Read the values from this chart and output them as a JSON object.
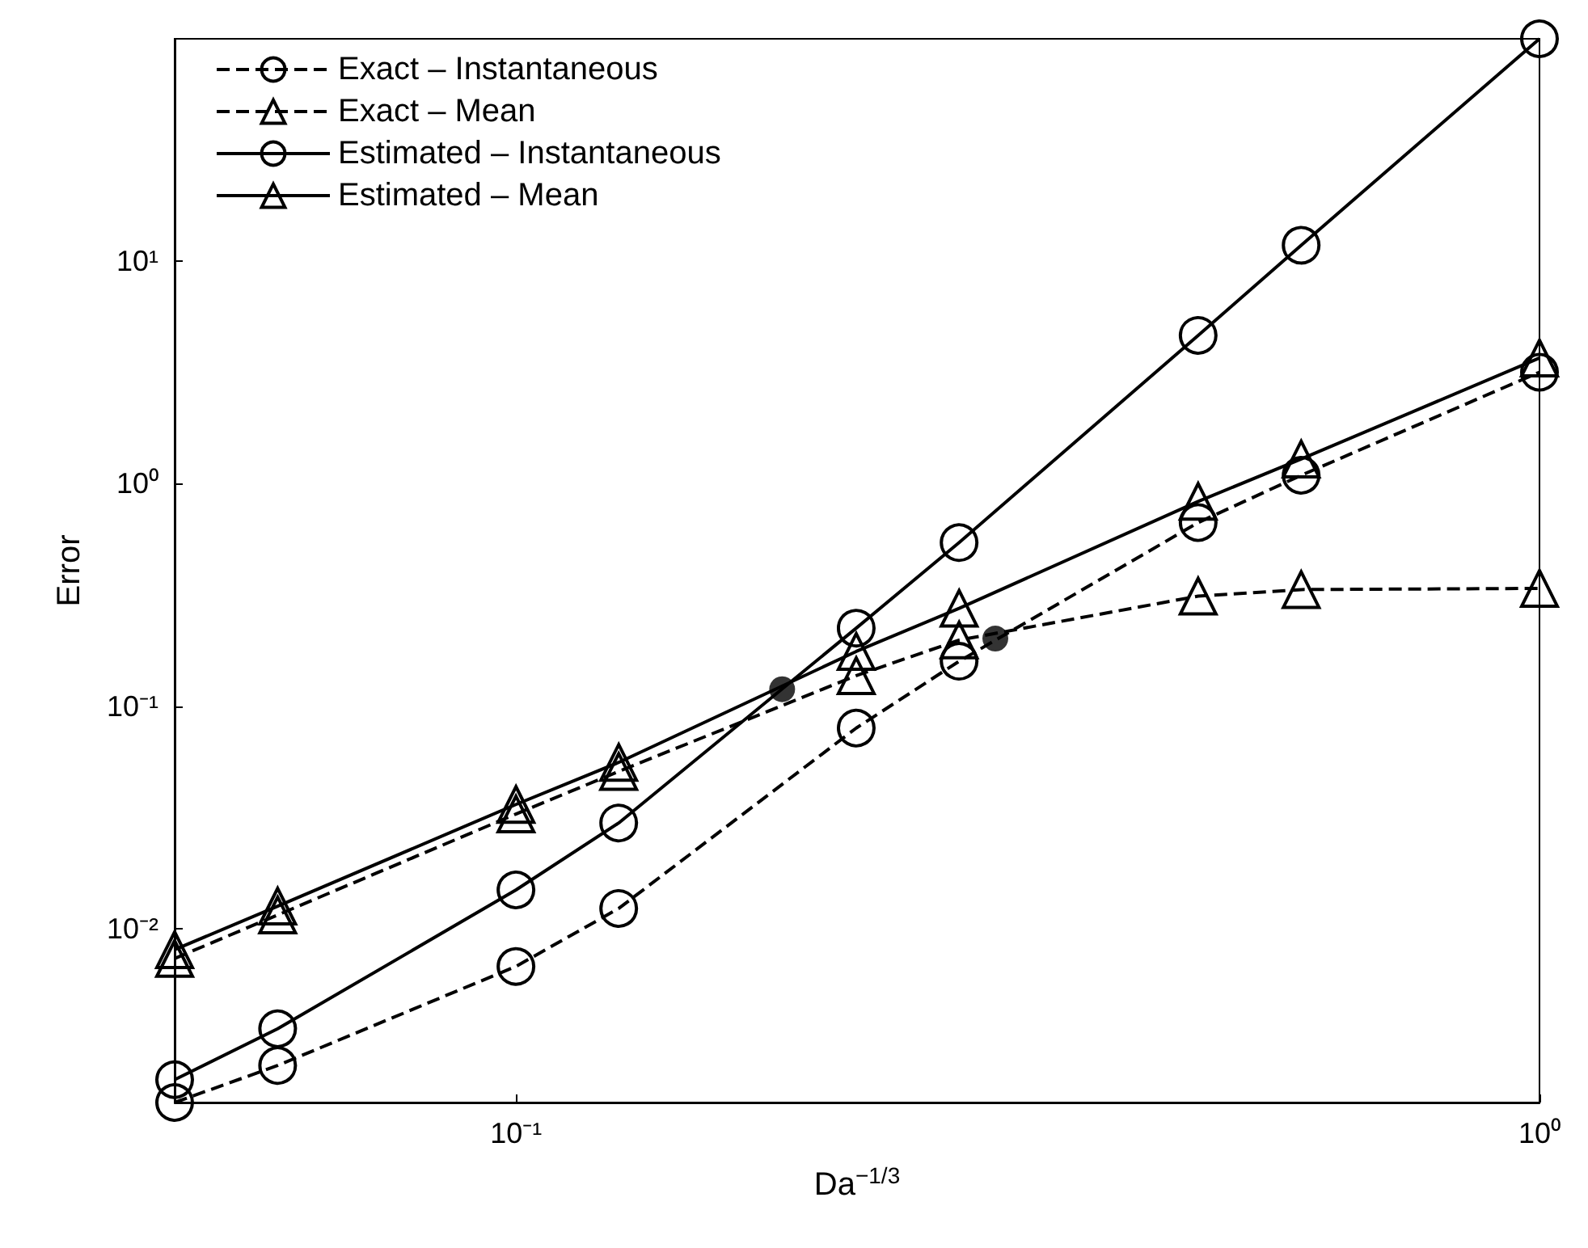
{
  "chart_data": {
    "type": "line",
    "xlabel": "Da$^{−1/3}$",
    "ylabel": "Error",
    "log": "xy",
    "grid": false,
    "legend": "top left",
    "x": [
      0.0464,
      0.0585,
      0.1,
      0.126,
      0.215,
      0.271,
      0.464,
      0.585,
      1
    ],
    "xlim": [
      0.0464,
      1
    ],
    "ylim": [
      0.00165,
      100
    ],
    "xticks": [
      {
        "value": 0.1,
        "label": "10⁻¹"
      },
      {
        "value": 1,
        "label": "10⁰"
      }
    ],
    "yticks": [
      {
        "value": 0.01,
        "label": "10⁻²"
      },
      {
        "value": 0.1,
        "label": "10⁻¹"
      },
      {
        "value": 1,
        "label": "10⁰"
      },
      {
        "value": 10,
        "label": "10¹"
      }
    ],
    "series": [
      {
        "name": "Exact – Instantaneous",
        "color": "#000000",
        "marker": "circle",
        "line_style": "dashed",
        "values": [
          0.00165,
          0.00242,
          0.00675,
          0.0123,
          0.0796,
          0.159,
          0.668,
          1.09,
          3.17
        ]
      },
      {
        "name": "Exact – Mean",
        "color": "#000000",
        "marker": "triangle",
        "line_style": "dashed",
        "values": [
          0.00733,
          0.0115,
          0.0327,
          0.0508,
          0.137,
          0.198,
          0.312,
          0.334,
          0.338
        ]
      },
      {
        "name": "Estimated – Instantaneous",
        "color": "#000000",
        "marker": "circle",
        "line_style": "solid",
        "values": [
          0.00209,
          0.00354,
          0.0149,
          0.0298,
          0.224,
          0.543,
          4.64,
          11.8,
          100
        ]
      },
      {
        "name": "Estimated – Mean",
        "color": "#000000",
        "marker": "triangle",
        "line_style": "solid",
        "values": [
          0.00803,
          0.0126,
          0.0361,
          0.0558,
          0.176,
          0.275,
          0.832,
          1.29,
          3.67
        ]
      },
      {
        "type": "scatter",
        "color": "#000000",
        "marker": "circle",
        "x": [
          0.182,
          0.294
        ],
        "values": [
          0.119,
          0.201
        ]
      }
    ]
  }
}
